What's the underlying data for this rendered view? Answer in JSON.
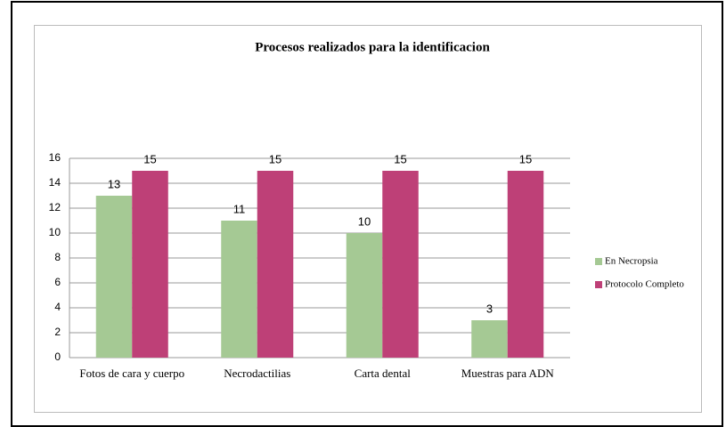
{
  "chart_data": {
    "type": "bar",
    "title": "Procesos realizados para la identificacion",
    "categories": [
      "Fotos de cara y cuerpo",
      "Necrodactilias",
      "Carta dental",
      "Muestras para ADN"
    ],
    "series": [
      {
        "name": "En Necropsia",
        "color": "#a5c994",
        "values": [
          13,
          11,
          10,
          3
        ]
      },
      {
        "name": "Protocolo Completo",
        "color": "#be4077",
        "values": [
          15,
          15,
          15,
          15
        ]
      }
    ],
    "ylim": [
      0,
      16
    ],
    "yticks": [
      0,
      2,
      4,
      6,
      8,
      10,
      12,
      14,
      16
    ],
    "grid": true,
    "legend": "right"
  }
}
